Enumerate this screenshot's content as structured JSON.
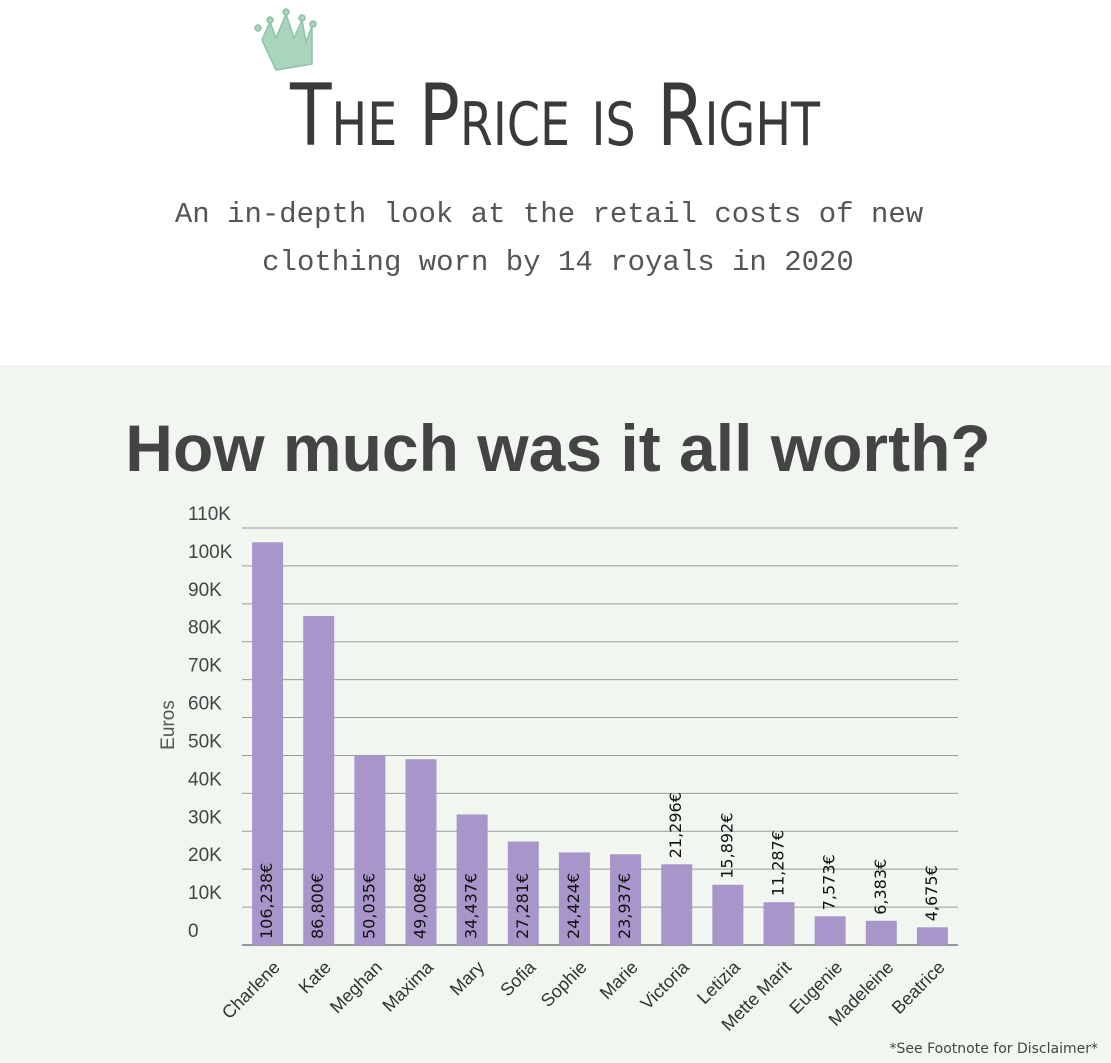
{
  "header": {
    "title": "The Price is Right",
    "subtitle": [
      "An in-depth look at the retail costs of new",
      "clothing worn by 14 royals in 2020"
    ]
  },
  "chart_data": {
    "type": "bar",
    "title": "How much was it all worth?",
    "y_label": "Euros",
    "categories": [
      "Charlene",
      "Kate",
      "Meghan",
      "Maxima",
      "Mary",
      "Sofia",
      "Sophie",
      "Marie",
      "Victoria",
      "Letizia",
      "Mette Marit",
      "Eugenie",
      "Madeleine",
      "Beatrice"
    ],
    "values": [
      106238,
      86800,
      50035,
      49008,
      34437,
      27281,
      24424,
      23937,
      21296,
      15892,
      11287,
      7573,
      6383,
      4675
    ],
    "value_labels": [
      "106,238€",
      "86,800€",
      "50,035€",
      "49,008€",
      "34,437€",
      "27,281€",
      "24,424€",
      "23,937€",
      "21,296€",
      "15,892€",
      "11,287€",
      "7,573€",
      "6,383€",
      "4,675€"
    ],
    "color": "#a895c9",
    "ylim": [
      0,
      110000
    ],
    "yticks": [
      0,
      {
        "value": 10000,
        "label": "10K"
      },
      {
        "value": 20000,
        "label": "20K"
      },
      {
        "value": 30000,
        "label": "30K"
      },
      {
        "value": 40000,
        "label": "40K"
      },
      {
        "value": 50000,
        "label": "50K"
      },
      {
        "value": 60000,
        "label": "60K"
      },
      {
        "value": 70000,
        "label": "70K"
      },
      {
        "value": 80000,
        "label": "80K"
      },
      {
        "value": 90000,
        "label": "90K"
      },
      {
        "value": 100000,
        "label": "100K"
      },
      {
        "value": 110000,
        "label": "110K"
      }
    ],
    "grid": true
  },
  "footnote": "*See Footnote for Disclaimer*"
}
